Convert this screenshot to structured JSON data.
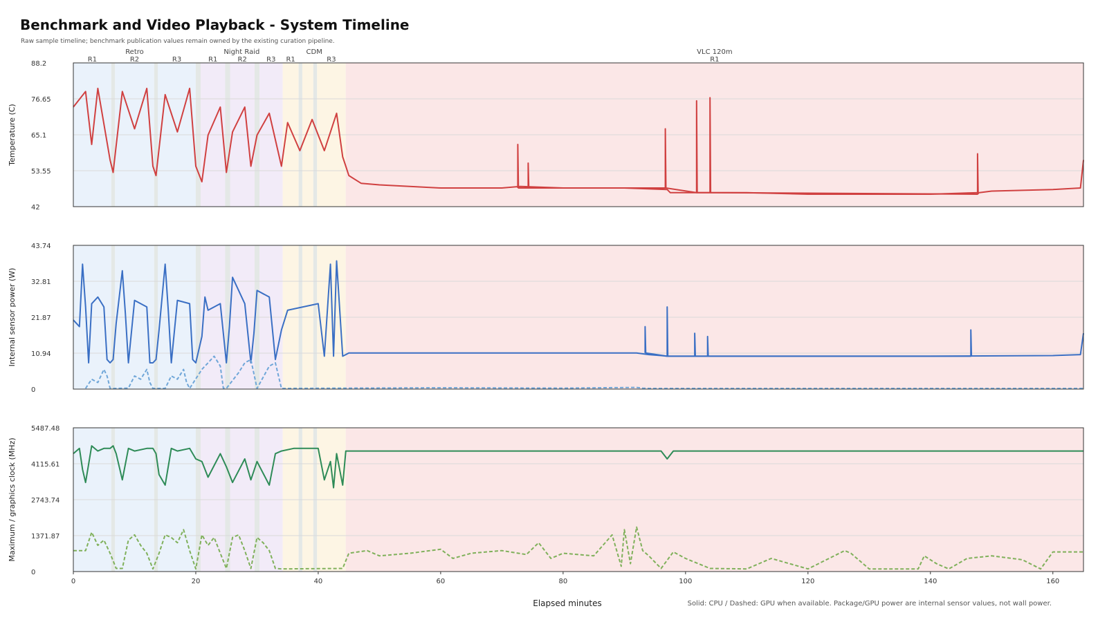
{
  "header": {
    "title": "Benchmark and Video Playback - System Timeline",
    "subtitle": "Raw sample timeline; benchmark publication values remain owned by the existing curation pipeline.",
    "x_axis_label": "Elapsed minutes",
    "footnote": "Solid: CPU / Dashed: GPU when available. Package/GPU power are internal sensor values, not wall power."
  },
  "chart_data": {
    "type": "line",
    "x_range": [
      0,
      165
    ],
    "x_ticks": [
      0,
      20,
      40,
      60,
      80,
      100,
      120,
      140,
      160
    ],
    "grid": true,
    "phases": [
      {
        "name": "Retro",
        "runs": [
          {
            "label": "R1",
            "start": 0,
            "end": 6.2,
            "color": "#eaf2fb"
          },
          {
            "label": "R2",
            "start": 6.8,
            "end": 13.2,
            "color": "#eaf2fb"
          },
          {
            "label": "R3",
            "start": 13.8,
            "end": 20.0,
            "color": "#eaf2fb"
          }
        ]
      },
      {
        "name": "Night Raid",
        "runs": [
          {
            "label": "R1",
            "start": 20.8,
            "end": 24.8,
            "color": "#f2ebf8"
          },
          {
            "label": "R2",
            "start": 25.6,
            "end": 29.6,
            "color": "#f2ebf8"
          },
          {
            "label": "R3",
            "start": 30.4,
            "end": 34.2,
            "color": "#f2ebf8"
          }
        ]
      },
      {
        "name": "CDM",
        "runs": [
          {
            "label": "R1",
            "start": 34.2,
            "end": 36.8,
            "color": "#fdf5e4"
          },
          {
            "label": "",
            "start": 37.4,
            "end": 39.2,
            "color": "#fdf5e4"
          },
          {
            "label": "R3",
            "start": 39.8,
            "end": 44.5,
            "color": "#fdf5e4"
          }
        ]
      },
      {
        "name": "VLC 120m",
        "runs": [
          {
            "label": "R1",
            "start": 44.5,
            "end": 165,
            "color": "#fbe7e7"
          }
        ]
      }
    ],
    "panels": [
      {
        "ylabel": "Temperature (C)",
        "ylim": [
          42,
          88.2
        ],
        "yticks": [
          "42",
          "53.55",
          "65.1",
          "76.65",
          "88.2"
        ],
        "series": [
          {
            "style": "solid",
            "color": "#d04040",
            "x": [
              0,
              2,
              3,
              4,
              6,
              6.5,
              8,
              10,
              12,
              13,
              13.5,
              15,
              17,
              19,
              20,
              21,
              22,
              24,
              25,
              26,
              28,
              29,
              30,
              32,
              34,
              35,
              37,
              39,
              41,
              43,
              44,
              44.5,
              45,
              47,
              50,
              60,
              70,
              73,
              80,
              90,
              97,
              97.5,
              100,
              104,
              110,
              120,
              130,
              140,
              148,
              150,
              160,
              164.5,
              165
            ],
            "y": [
              74,
              79,
              62,
              80,
              57,
              53,
              79,
              67,
              80,
              55,
              52,
              78,
              66,
              80,
              55,
              50,
              65,
              74,
              53,
              66,
              74,
              55,
              65,
              72,
              55,
              69,
              60,
              70,
              60,
              72,
              58,
              55,
              52,
              49.5,
              49,
              48,
              48,
              48.5,
              48,
              48,
              47.5,
              46.5,
              46.5,
              46.5,
              46.5,
              46,
              46,
              46,
              46.5,
              47,
              47.5,
              48,
              57
            ]
          },
          {
            "style": "solid",
            "color": "#d04040",
            "x": [
              72.6,
              72.6,
              72.7,
              74.3,
              74.3,
              74.4,
              96.7,
              96.7,
              96.8,
              101.8,
              101.8,
              101.9,
              104.0,
              104.0,
              104.1,
              147.7,
              147.7,
              147.8
            ],
            "y": [
              48,
              62,
              48,
              48,
              56,
              48,
              48,
              67,
              48,
              46.5,
              76,
              46.5,
              46.5,
              77,
              46.5,
              46,
              59,
              46
            ]
          }
        ]
      },
      {
        "ylabel": "Internal sensor power (W)",
        "ylim": [
          0,
          43.74
        ],
        "yticks": [
          "0",
          "10.94",
          "21.87",
          "32.81",
          "43.74"
        ],
        "series": [
          {
            "style": "solid",
            "color": "#3a6fc4",
            "x": [
              0,
              1,
              1.5,
              2,
              2.5,
              3,
              4,
              5,
              5.5,
              6,
              6.5,
              7,
              8,
              8.5,
              9,
              10,
              12,
              12.5,
              13,
              13.5,
              14,
              15,
              15.5,
              16,
              17,
              19,
              19.5,
              20,
              21,
              21.5,
              22,
              24,
              25,
              25.5,
              26,
              28,
              29,
              29.5,
              30,
              32,
              33,
              34,
              35,
              40,
              41,
              42,
              42.5,
              43,
              44,
              44.5,
              45,
              60,
              80,
              92,
              94,
              96,
              97,
              97.5,
              100,
              120,
              140,
              160,
              164.5,
              165
            ],
            "y": [
              21,
              19,
              38,
              25,
              8,
              26,
              28,
              25,
              9,
              8,
              9,
              20,
              36,
              23,
              8,
              27,
              25,
              8,
              8,
              9,
              18,
              38,
              24,
              8,
              27,
              26,
              9,
              8,
              16,
              28,
              24,
              26,
              8,
              19,
              34,
              26,
              8,
              17,
              30,
              28,
              9,
              18,
              24,
              26,
              10,
              38,
              10,
              39,
              10,
              10.5,
              11,
              11,
              11,
              11,
              10.5,
              10.2,
              10,
              10,
              10,
              10,
              10,
              10.2,
              10.5,
              17
            ]
          },
          {
            "style": "solid",
            "color": "#3a6fc4",
            "x": [
              93.4,
              93.4,
              93.5,
              97.0,
              97.0,
              97.1,
              101.5,
              101.5,
              101.6,
              103.6,
              103.6,
              103.7,
              146.6,
              146.6,
              146.7
            ],
            "y": [
              11,
              19,
              11,
              10,
              25,
              10,
              10,
              17,
              10,
              10,
              16,
              10,
              10,
              18,
              10
            ]
          },
          {
            "style": "dashed",
            "color": "#6fa6d8",
            "x": [
              2,
              3,
              4,
              5,
              5.5,
              6,
              6.5,
              7,
              9,
              10,
              11,
              12,
              12.5,
              13,
              15,
              16,
              17,
              18,
              18.5,
              19,
              21,
              22,
              23,
              24,
              24.5,
              25,
              27,
              28,
              29,
              30,
              32,
              33,
              34,
              44.5,
              60,
              80,
              92,
              93,
              94,
              165
            ],
            "y": [
              0.2,
              3,
              2,
              6,
              4,
              0.3,
              0.2,
              0.2,
              0.3,
              4,
              3,
              6,
              2,
              0.2,
              0.2,
              4,
              3,
              6,
              2,
              0.2,
              6,
              8,
              10,
              7,
              0.3,
              0.2,
              5,
              8,
              9,
              0.2,
              7,
              8,
              0.2,
              0.3,
              0.4,
              0.3,
              0.5,
              0.3,
              0.2,
              0.2
            ]
          }
        ]
      },
      {
        "ylabel": "Maximum / graphics clock (MHz)",
        "ylim": [
          0,
          5487.48
        ],
        "yticks": [
          "0",
          "1371.87",
          "2743.74",
          "4115.61",
          "5487.48"
        ],
        "series": [
          {
            "style": "solid",
            "color": "#2e8b57",
            "x": [
              0,
              1,
              1.5,
              2,
              3,
              4,
              5,
              6,
              6.5,
              7,
              8,
              9,
              10,
              12,
              13,
              13.5,
              14,
              15,
              16,
              17,
              19,
              20,
              21,
              22,
              24,
              25,
              26,
              28,
              29,
              30,
              32,
              33,
              34,
              36,
              40,
              41,
              42,
              42.5,
              43,
              44,
              44.5,
              60,
              80,
              96,
              97,
              98,
              120,
              140,
              160,
              165
            ],
            "y": [
              4500,
              4700,
              3900,
              3400,
              4800,
              4600,
              4700,
              4700,
              4800,
              4500,
              3500,
              4700,
              4600,
              4700,
              4700,
              4500,
              3700,
              3300,
              4700,
              4600,
              4700,
              4300,
              4200,
              3600,
              4500,
              4000,
              3400,
              4300,
              3500,
              4200,
              3300,
              4500,
              4600,
              4700,
              4700,
              3500,
              4200,
              3200,
              4500,
              3300,
              4600,
              4600,
              4600,
              4600,
              4300,
              4600,
              4600,
              4600,
              4600,
              4600
            ]
          },
          {
            "style": "dashed",
            "color": "#7fb05a",
            "x": [
              0,
              2,
              3,
              4,
              5,
              6,
              7,
              8,
              9,
              10,
              11,
              12,
              13,
              14,
              15,
              16,
              17,
              18,
              19,
              20,
              21,
              22,
              23,
              24,
              25,
              26,
              27,
              28,
              29,
              30,
              31,
              32,
              33,
              34,
              44,
              45,
              48,
              50,
              55,
              60,
              62,
              65,
              70,
              74,
              76,
              78,
              80,
              85,
              88,
              89.5,
              90,
              91,
              92,
              93,
              94,
              96,
              98,
              100,
              104,
              110,
              114,
              120,
              126,
              127,
              130,
              138,
              139,
              141,
              143,
              146,
              150,
              155,
              158,
              160,
              165
            ],
            "y": [
              800,
              800,
              1500,
              1000,
              1200,
              700,
              120,
              120,
              1200,
              1400,
              1000,
              700,
              100,
              700,
              1400,
              1300,
              1100,
              1600,
              800,
              100,
              1400,
              1000,
              1300,
              700,
              120,
              1300,
              1400,
              800,
              120,
              1300,
              1100,
              800,
              120,
              100,
              120,
              700,
              800,
              600,
              700,
              850,
              500,
              700,
              800,
              650,
              1100,
              500,
              700,
              600,
              1400,
              200,
              1600,
              300,
              1700,
              800,
              600,
              120,
              750,
              500,
              120,
              100,
              500,
              100,
              800,
              700,
              100,
              100,
              600,
              300,
              100,
              500,
              600,
              450,
              100,
              750,
              750
            ]
          }
        ]
      }
    ]
  }
}
